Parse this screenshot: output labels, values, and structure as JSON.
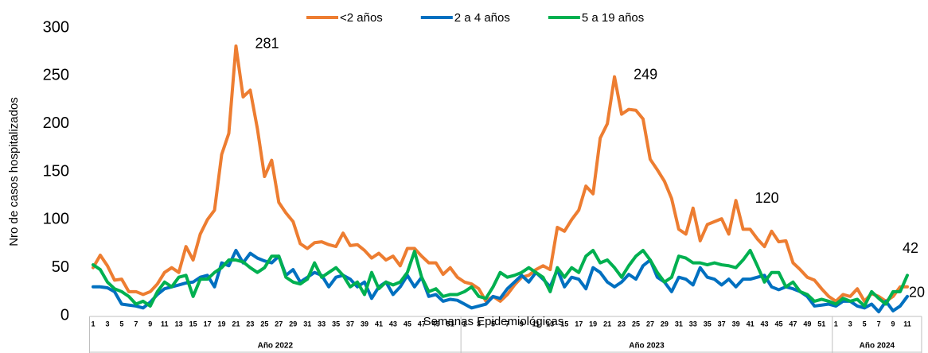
{
  "chart_data": {
    "type": "line",
    "y_label": "Nro de casos hospitalizados",
    "x_label": "Semanas Epidemiológicas",
    "legend": "top",
    "ylim": [
      0,
      300
    ],
    "yticks": [
      0,
      50,
      100,
      150,
      200,
      250,
      300
    ],
    "x_groups": [
      "Año 2022",
      "Año 2023",
      "Año 2024"
    ],
    "categories": [
      "1",
      null,
      "3",
      null,
      "5",
      null,
      "7",
      null,
      "9",
      null,
      "11",
      null,
      "13",
      null,
      "15",
      null,
      "17",
      null,
      "19",
      null,
      "21",
      null,
      "23",
      null,
      "25",
      null,
      "27",
      null,
      "29",
      null,
      "31",
      null,
      "33",
      null,
      "35",
      null,
      "37",
      null,
      "39",
      null,
      "41",
      null,
      "43",
      null,
      "45",
      null,
      "47",
      null,
      "49",
      null,
      "51",
      null,
      "1",
      null,
      "3",
      null,
      "5",
      null,
      "7",
      null,
      "9",
      null,
      "11",
      null,
      "13",
      null,
      "15",
      null,
      "17",
      null,
      "19",
      null,
      "21",
      null,
      "23",
      null,
      "25",
      null,
      "27",
      null,
      "29",
      null,
      "31",
      null,
      "33",
      null,
      "35",
      null,
      "37",
      null,
      "39",
      null,
      "41",
      null,
      "43",
      null,
      "45",
      null,
      "47",
      null,
      "49",
      null,
      "51",
      null,
      "1",
      null,
      "3",
      null,
      "5",
      null,
      "7",
      null,
      "9",
      null,
      "11"
    ],
    "series": [
      {
        "name": "<2  años",
        "color": "#ed7d31",
        "values": [
          50,
          63,
          52,
          37,
          38,
          25,
          25,
          22,
          25,
          33,
          45,
          50,
          45,
          72,
          58,
          85,
          100,
          110,
          168,
          190,
          281,
          228,
          235,
          195,
          145,
          162,
          118,
          107,
          98,
          75,
          70,
          76,
          77,
          74,
          72,
          86,
          73,
          74,
          68,
          60,
          65,
          58,
          62,
          52,
          70,
          70,
          62,
          55,
          55,
          43,
          50,
          40,
          35,
          33,
          28,
          15,
          20,
          15,
          22,
          32,
          40,
          42,
          48,
          52,
          48,
          92,
          88,
          100,
          110,
          135,
          127,
          185,
          200,
          249,
          210,
          215,
          214,
          205,
          163,
          152,
          140,
          122,
          90,
          85,
          112,
          78,
          95,
          98,
          101,
          85,
          120,
          90,
          90,
          80,
          72,
          88,
          77,
          78,
          55,
          48,
          40,
          37,
          28,
          20,
          15,
          22,
          20,
          28,
          15,
          23,
          20,
          15,
          20,
          30,
          30
        ]
      },
      {
        "name": "2 a 4 años",
        "color": "#0070c0",
        "values": [
          30,
          30,
          29,
          25,
          12,
          11,
          10,
          8,
          14,
          22,
          28,
          30,
          32,
          34,
          35,
          40,
          42,
          30,
          55,
          52,
          68,
          55,
          65,
          60,
          57,
          55,
          62,
          42,
          48,
          35,
          40,
          45,
          42,
          30,
          40,
          42,
          38,
          30,
          35,
          18,
          30,
          35,
          22,
          30,
          42,
          30,
          40,
          20,
          22,
          15,
          17,
          16,
          12,
          8,
          10,
          12,
          20,
          18,
          28,
          35,
          42,
          35,
          45,
          38,
          30,
          48,
          30,
          40,
          38,
          28,
          50,
          45,
          35,
          30,
          35,
          43,
          38,
          52,
          58,
          40,
          35,
          25,
          40,
          38,
          32,
          50,
          40,
          38,
          32,
          38,
          30,
          38,
          38,
          40,
          42,
          30,
          27,
          30,
          28,
          25,
          20,
          10,
          11,
          12,
          10,
          15,
          15,
          10,
          8,
          12,
          4,
          15,
          5,
          10,
          20
        ]
      },
      {
        "name": "5 a 19 años",
        "color": "#00b050",
        "values": [
          53,
          48,
          35,
          28,
          25,
          20,
          12,
          15,
          10,
          25,
          35,
          30,
          40,
          42,
          20,
          38,
          38,
          45,
          50,
          58,
          58,
          56,
          50,
          45,
          50,
          62,
          62,
          40,
          35,
          33,
          38,
          55,
          40,
          45,
          50,
          42,
          30,
          35,
          22,
          45,
          28,
          35,
          32,
          35,
          45,
          67,
          40,
          25,
          28,
          20,
          22,
          22,
          25,
          30,
          20,
          18,
          30,
          45,
          40,
          42,
          45,
          50,
          45,
          40,
          25,
          50,
          40,
          50,
          45,
          62,
          68,
          55,
          58,
          50,
          40,
          52,
          62,
          68,
          58,
          45,
          35,
          40,
          62,
          60,
          55,
          55,
          53,
          55,
          53,
          52,
          50,
          58,
          68,
          52,
          35,
          45,
          45,
          30,
          35,
          25,
          22,
          15,
          17,
          15,
          12,
          18,
          15,
          17,
          10,
          25,
          18,
          12,
          25,
          25,
          42
        ]
      }
    ],
    "annotations": [
      "281",
      "249",
      "120",
      "42",
      "20"
    ]
  }
}
